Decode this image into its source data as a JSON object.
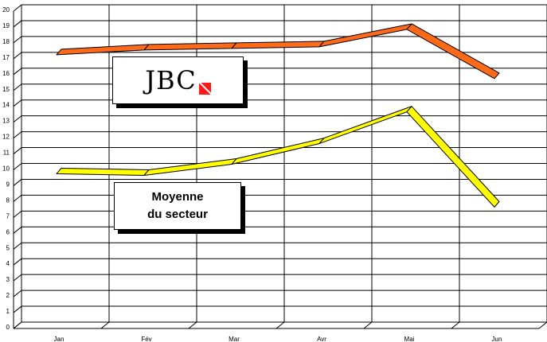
{
  "chart_data": {
    "type": "line",
    "title": "",
    "xlabel": "",
    "ylabel": "",
    "categories": [
      "Jan",
      "Fév",
      "Mar",
      "Avr",
      "Mai",
      "Jun"
    ],
    "ylim": [
      0,
      20
    ],
    "yticks": [
      "0",
      "1",
      "2",
      "3",
      "4",
      "5",
      "6",
      "7",
      "8",
      "9",
      "10",
      "11",
      "12",
      "13",
      "14",
      "15",
      "16",
      "17",
      "18",
      "19",
      "20"
    ],
    "grid": true,
    "series": [
      {
        "name": "JBC",
        "values": [
          17.2,
          17.5,
          17.6,
          17.7,
          18.8,
          15.7
        ],
        "color": "#ff6a1a"
      },
      {
        "name": "Moyenne du secteur",
        "values": [
          9.7,
          9.6,
          10.3,
          11.6,
          13.6,
          7.6
        ],
        "color": "#ffff00"
      }
    ],
    "legend_placement": "inside-left"
  },
  "legend": {
    "jbc_logo_text": "JBC",
    "moyenne_line1": "Moyenne",
    "moyenne_line2": "du secteur"
  }
}
